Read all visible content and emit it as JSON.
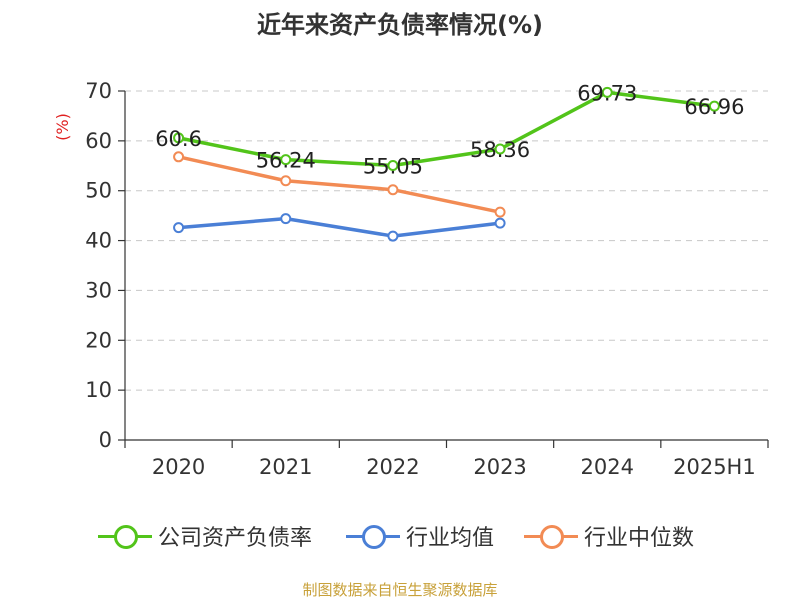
{
  "title": "近年来资产负债率情况(%)",
  "source": "制图数据来自恒生聚源数据库",
  "chart_data": {
    "type": "line",
    "title": "近年来资产负债率情况(%)",
    "ylabel": "(%)",
    "xlabel": "",
    "categories": [
      "2020",
      "2021",
      "2022",
      "2023",
      "2024",
      "2025H1"
    ],
    "ylim": [
      0,
      70
    ],
    "yticks": [
      0,
      10,
      20,
      30,
      40,
      50,
      60,
      70
    ],
    "grid": true,
    "legend_position": "bottom",
    "series": [
      {
        "name": "公司资产负债率",
        "color": "#52c41a",
        "show_labels": true,
        "values": [
          60.6,
          56.24,
          55.05,
          58.36,
          69.73,
          66.96
        ]
      },
      {
        "name": "行业均值",
        "color": "#4a7fd6",
        "show_labels": false,
        "values": [
          42.6,
          44.4,
          40.9,
          43.5,
          null,
          null
        ]
      },
      {
        "name": "行业中位数",
        "color": "#f28b54",
        "show_labels": false,
        "values": [
          56.8,
          52.0,
          50.2,
          45.7,
          null,
          null
        ]
      }
    ]
  }
}
